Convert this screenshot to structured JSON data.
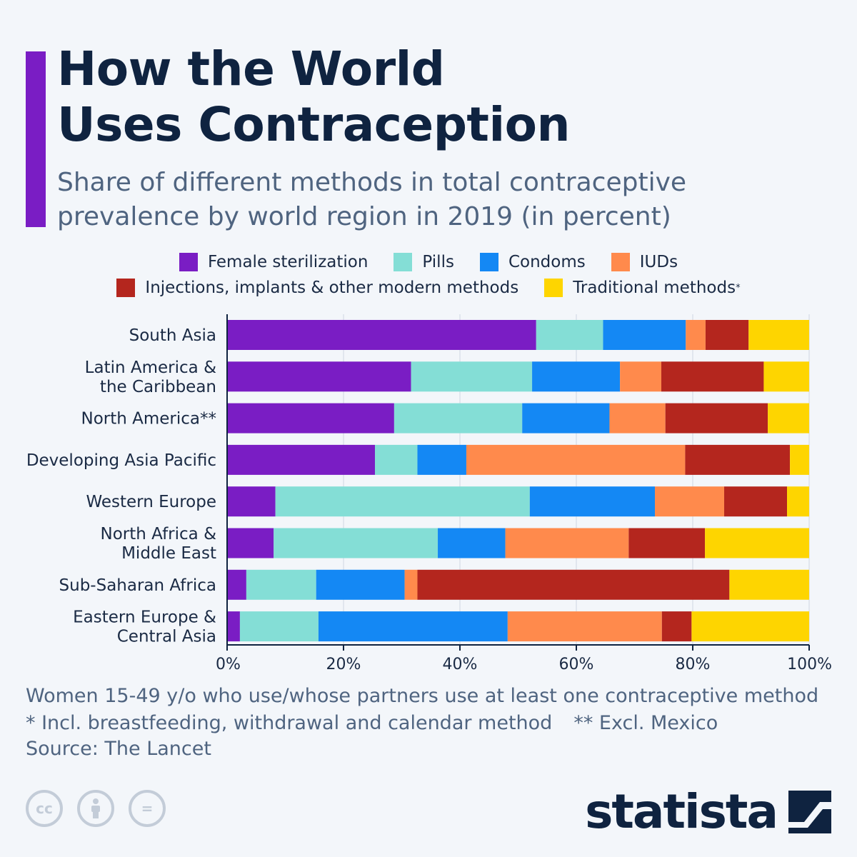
{
  "header": {
    "title_line1": "How the World",
    "title_line2": "Uses Contraception",
    "subtitle_line1": "Share of different methods in total contraceptive",
    "subtitle_line2": "prevalence by world region in 2019 (in percent)"
  },
  "legend": {
    "female_sterilization": "Female sterilization",
    "pills": "Pills",
    "condoms": "Condoms",
    "iuds": "IUDs",
    "injections": "Injections, implants & other modern methods",
    "traditional": "Traditional methods",
    "traditional_mark": "*"
  },
  "colors": {
    "accent": "#7a1dc4",
    "female_sterilization": "#7a1dc4",
    "pills": "#84ded6",
    "condoms": "#1488f4",
    "iuds": "#ff8a4c",
    "injections": "#b4261e",
    "traditional": "#fed500",
    "axis": "#0f2340",
    "grid": "#cfd7e2"
  },
  "chart_data": {
    "type": "bar",
    "orientation": "horizontal",
    "stacked": true,
    "categories": [
      [
        "South Asia"
      ],
      [
        "Latin America &",
        "the Caribbean"
      ],
      [
        "North America**"
      ],
      [
        "Developing Asia Pacific"
      ],
      [
        "Western Europe"
      ],
      [
        "North Africa &",
        "Middle East"
      ],
      [
        "Sub-Saharan Africa"
      ],
      [
        "Eastern Europe &",
        "Central Asia"
      ]
    ],
    "series": [
      {
        "name": "Female sterilization",
        "color_key": "female_sterilization",
        "values": [
          53.1,
          31.6,
          28.7,
          25.4,
          8.3,
          8.0,
          3.3,
          2.2
        ]
      },
      {
        "name": "Pills",
        "color_key": "pills",
        "values": [
          11.5,
          20.8,
          22.0,
          7.3,
          43.7,
          28.2,
          12.0,
          13.5
        ]
      },
      {
        "name": "Condoms",
        "color_key": "condoms",
        "values": [
          14.2,
          15.1,
          15.0,
          8.4,
          21.5,
          11.6,
          15.2,
          32.5
        ]
      },
      {
        "name": "IUDs",
        "color_key": "iuds",
        "values": [
          3.4,
          7.1,
          9.6,
          37.6,
          11.9,
          21.2,
          2.2,
          26.5
        ]
      },
      {
        "name": "Injections, implants & other modern methods",
        "color_key": "injections",
        "values": [
          7.4,
          17.6,
          17.6,
          18.0,
          10.8,
          13.1,
          53.6,
          5.1
        ]
      },
      {
        "name": "Traditional methods",
        "color_key": "traditional",
        "values": [
          10.4,
          7.8,
          7.1,
          3.3,
          3.8,
          17.9,
          13.7,
          20.2
        ]
      }
    ],
    "x_ticks": [
      "0%",
      "20%",
      "40%",
      "60%",
      "80%",
      "100%"
    ],
    "xlim": [
      0,
      100
    ],
    "grid": true
  },
  "notes": {
    "line1": "Women 15-49 y/o who use/whose partners use at least one contraceptive method",
    "line2a": "* Incl. breastfeeding, withdrawal and calendar method",
    "line2b": "** Excl. Mexico",
    "source": "Source: The Lancet"
  },
  "footer": {
    "cc_label": "cc",
    "eq_label": "=",
    "brand": "statista"
  }
}
